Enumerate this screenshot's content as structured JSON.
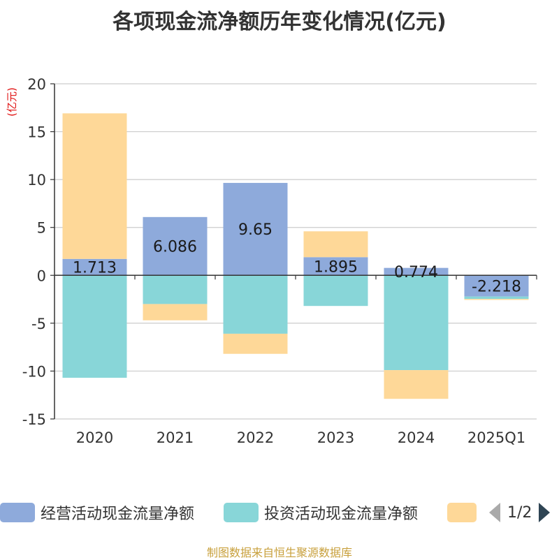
{
  "chart_data": {
    "type": "bar",
    "stacked": true,
    "title": "各项现金流净额历年变化情况(亿元)",
    "ylabel": "(亿元)",
    "ylim": [
      -15,
      20
    ],
    "yticks": [
      20,
      15,
      10,
      5,
      0,
      -5,
      -10,
      -15
    ],
    "categories": [
      "2020",
      "2021",
      "2022",
      "2023",
      "2024",
      "2025Q1"
    ],
    "series": [
      {
        "name": "经营活动现金流量净额",
        "color": "#8eaadb",
        "values": [
          1.713,
          6.086,
          9.65,
          1.895,
          0.774,
          -2.218
        ],
        "show_labels": true
      },
      {
        "name": "投资活动现金流量净额",
        "color": "#88d6d8",
        "values": [
          -10.7,
          -3.0,
          -6.1,
          -3.2,
          -9.9,
          -0.25
        ],
        "show_labels": false
      },
      {
        "name": "",
        "color": "#fed898",
        "values": [
          15.2,
          -1.7,
          -2.1,
          2.7,
          -3.0,
          -0.1
        ],
        "show_labels": false
      }
    ],
    "grid": true,
    "legend_position": "bottom"
  },
  "legend": {
    "pager_text": "1/2"
  },
  "source": "制图数据来自恒生聚源数据库"
}
